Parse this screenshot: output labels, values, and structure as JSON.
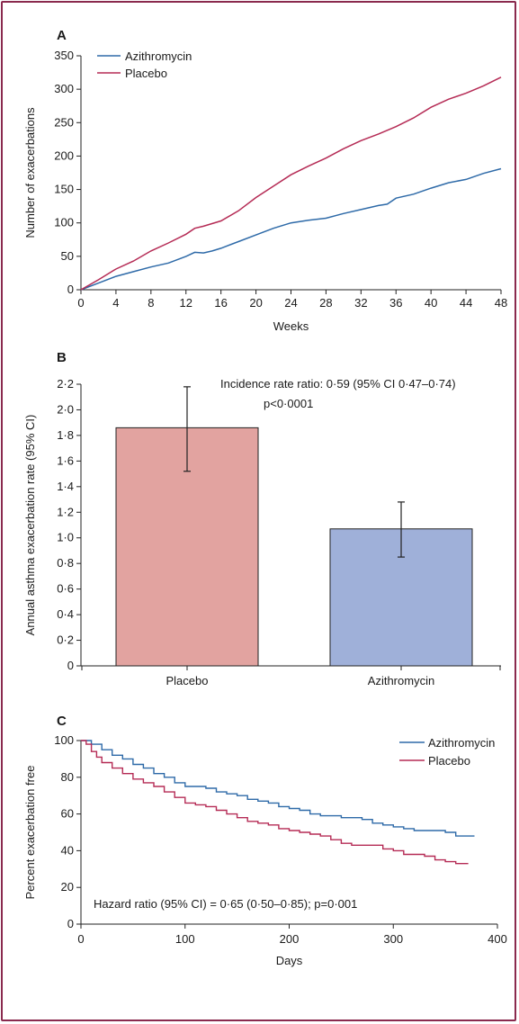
{
  "chart_data": [
    {
      "panel": "A",
      "type": "line",
      "xlabel": "Weeks",
      "ylabel": "Number of exacerbations",
      "xlim": [
        0,
        48
      ],
      "ylim": [
        0,
        350
      ],
      "x_ticks": [
        "0",
        "4",
        "8",
        "12",
        "16",
        "20",
        "24",
        "28",
        "32",
        "36",
        "40",
        "44",
        "48"
      ],
      "y_ticks": [
        "0",
        "50",
        "100",
        "150",
        "200",
        "250",
        "300",
        "350"
      ],
      "legend_position": "top-left",
      "series": [
        {
          "name": "Azithromycin",
          "color": "#2e6aa8",
          "x": [
            0,
            2,
            4,
            6,
            8,
            10,
            12,
            13,
            14,
            15,
            16,
            18,
            20,
            22,
            24,
            26,
            28,
            30,
            32,
            34,
            35,
            36,
            38,
            40,
            42,
            44,
            46,
            48
          ],
          "y": [
            0,
            10,
            20,
            27,
            34,
            40,
            50,
            56,
            55,
            58,
            62,
            72,
            82,
            92,
            100,
            104,
            107,
            114,
            120,
            126,
            128,
            137,
            143,
            152,
            160,
            165,
            174,
            181
          ]
        },
        {
          "name": "Placebo",
          "color": "#b52b55",
          "x": [
            0,
            2,
            4,
            6,
            8,
            10,
            12,
            13,
            14,
            16,
            18,
            20,
            22,
            24,
            26,
            28,
            30,
            32,
            34,
            36,
            38,
            40,
            42,
            44,
            46,
            48
          ],
          "y": [
            0,
            15,
            31,
            43,
            58,
            70,
            83,
            92,
            95,
            103,
            118,
            138,
            155,
            172,
            185,
            197,
            211,
            223,
            233,
            244,
            257,
            273,
            285,
            294,
            305,
            318
          ]
        }
      ]
    },
    {
      "panel": "B",
      "type": "bar",
      "ylabel": "Annual asthma exacerbation rate (95% CI)",
      "ylim": [
        0,
        2.2
      ],
      "y_ticks": [
        "0",
        "0·2",
        "0·4",
        "0·6",
        "0·8",
        "1·0",
        "1·2",
        "1·4",
        "1·6",
        "1·8",
        "2·0",
        "2·2"
      ],
      "categories": [
        "Placebo",
        "Azithromycin"
      ],
      "values": [
        1.86,
        1.07
      ],
      "ci_low": [
        1.52,
        0.85
      ],
      "ci_high": [
        2.18,
        1.28
      ],
      "colors": [
        "#e2a3a0",
        "#9fb0d9"
      ],
      "annotation_line1": "Incidence rate ratio: 0·59 (95% CI 0·47–0·74)",
      "annotation_line2": "p<0·0001"
    },
    {
      "panel": "C",
      "type": "line",
      "xlabel": "Days",
      "ylabel": "Percent exacerbation free",
      "xlim": [
        0,
        400
      ],
      "ylim": [
        0,
        100
      ],
      "x_ticks": [
        "0",
        "100",
        "200",
        "300",
        "400"
      ],
      "y_ticks": [
        "0",
        "20",
        "40",
        "60",
        "80",
        "100"
      ],
      "legend_position": "top-right",
      "annotation": "Hazard ratio (95% CI) = 0·65 (0·50–0·85); p=0·001",
      "series": [
        {
          "name": "Azithromycin",
          "color": "#2e6aa8",
          "x": [
            0,
            10,
            20,
            30,
            40,
            50,
            60,
            70,
            80,
            90,
            100,
            110,
            120,
            130,
            140,
            150,
            160,
            170,
            180,
            190,
            200,
            210,
            220,
            230,
            240,
            250,
            260,
            270,
            280,
            290,
            300,
            310,
            320,
            330,
            340,
            350,
            360,
            370,
            378
          ],
          "y": [
            100,
            98,
            95,
            92,
            90,
            87,
            85,
            82,
            80,
            77,
            75,
            75,
            74,
            72,
            71,
            70,
            68,
            67,
            66,
            64,
            63,
            62,
            60,
            59,
            59,
            58,
            58,
            57,
            55,
            54,
            53,
            52,
            51,
            51,
            51,
            50,
            48,
            48,
            48
          ]
        },
        {
          "name": "Placebo",
          "color": "#b52b55",
          "x": [
            0,
            5,
            10,
            15,
            20,
            30,
            40,
            50,
            60,
            70,
            80,
            90,
            100,
            110,
            120,
            130,
            140,
            150,
            160,
            170,
            180,
            190,
            200,
            210,
            220,
            230,
            240,
            250,
            260,
            270,
            280,
            290,
            300,
            310,
            320,
            330,
            340,
            350,
            360,
            372
          ],
          "y": [
            100,
            98,
            94,
            91,
            88,
            85,
            82,
            79,
            77,
            75,
            72,
            69,
            66,
            65,
            64,
            62,
            60,
            58,
            56,
            55,
            54,
            52,
            51,
            50,
            49,
            48,
            46,
            44,
            43,
            43,
            43,
            41,
            40,
            38,
            38,
            37,
            35,
            34,
            33,
            33
          ]
        }
      ]
    }
  ]
}
